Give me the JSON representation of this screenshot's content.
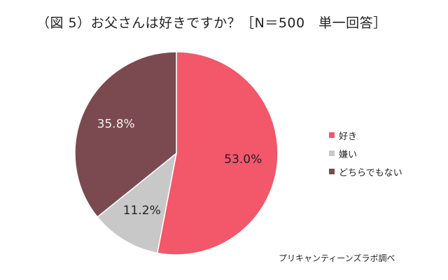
{
  "title": "（図 5）お父さんは好きですか？［N＝500　単一回答］",
  "source": "プリキャンティーンズラボ調べ",
  "chart_data": {
    "type": "pie",
    "title": "（図 5）お父さんは好きですか？［N＝500　単一回答］",
    "legend_position": "right",
    "start": "12 o'clock, clockwise",
    "slices": [
      {
        "label": "好き",
        "value": 53.0,
        "value_label": "53.0%",
        "color": "#f2576a",
        "text_color": "#222222"
      },
      {
        "label": "嫌い",
        "value": 11.2,
        "value_label": "11.2%",
        "color": "#c8c8c8",
        "text_color": "#222222"
      },
      {
        "label": "どちらでもない",
        "value": 35.8,
        "value_label": "35.8%",
        "color": "#7a4a50",
        "text_color": "#f2f2f2"
      }
    ]
  }
}
